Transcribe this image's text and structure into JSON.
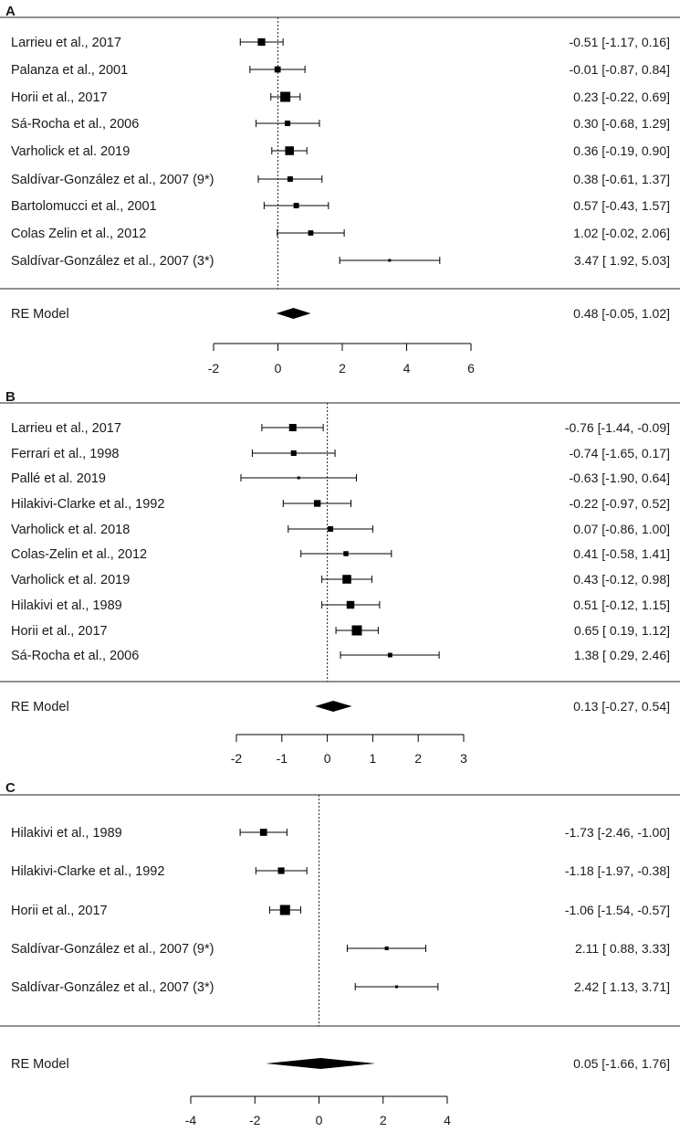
{
  "figure_title": "",
  "chart_data": [
    {
      "type": "forest",
      "panel": "A",
      "xlim": [
        -2,
        6
      ],
      "x_ticks": [
        -2,
        0,
        2,
        4,
        6
      ],
      "reference_line": 0,
      "studies": [
        {
          "label": "Larrieu et al., 2017",
          "estimate": -0.51,
          "lower": -1.17,
          "upper": 0.16,
          "ci_text": "-0.51 [-1.17, 0.16]"
        },
        {
          "label": "Palanza et al., 2001",
          "estimate": -0.01,
          "lower": -0.87,
          "upper": 0.84,
          "ci_text": "-0.01 [-0.87, 0.84]"
        },
        {
          "label": "Horii et al., 2017",
          "estimate": 0.23,
          "lower": -0.22,
          "upper": 0.69,
          "ci_text": "0.23 [-0.22, 0.69]"
        },
        {
          "label": "Sá-Rocha et al., 2006",
          "estimate": 0.3,
          "lower": -0.68,
          "upper": 1.29,
          "ci_text": "0.30 [-0.68, 1.29]"
        },
        {
          "label": "Varholick et al. 2019",
          "estimate": 0.36,
          "lower": -0.19,
          "upper": 0.9,
          "ci_text": "0.36 [-0.19, 0.90]"
        },
        {
          "label": "Saldívar-González et al., 2007 (9*)",
          "estimate": 0.38,
          "lower": -0.61,
          "upper": 1.37,
          "ci_text": "0.38 [-0.61, 1.37]"
        },
        {
          "label": "Bartolomucci et al., 2001",
          "estimate": 0.57,
          "lower": -0.43,
          "upper": 1.57,
          "ci_text": "0.57 [-0.43, 1.57]"
        },
        {
          "label": "Colas Zelin et al., 2012",
          "estimate": 1.02,
          "lower": -0.02,
          "upper": 2.06,
          "ci_text": "1.02 [-0.02, 2.06]"
        },
        {
          "label": "Saldívar-González et al., 2007 (3*)",
          "estimate": 3.47,
          "lower": 1.92,
          "upper": 5.03,
          "ci_text": "3.47 [ 1.92, 5.03]"
        }
      ],
      "pooled": {
        "label": "RE Model",
        "estimate": 0.48,
        "lower": -0.05,
        "upper": 1.02,
        "ci_text": "0.48 [-0.05, 1.02]"
      }
    },
    {
      "type": "forest",
      "panel": "B",
      "xlim": [
        -2,
        3
      ],
      "x_ticks": [
        -2,
        -1,
        0,
        1,
        2,
        3
      ],
      "reference_line": 0,
      "studies": [
        {
          "label": "Larrieu et al., 2017",
          "estimate": -0.76,
          "lower": -1.44,
          "upper": -0.09,
          "ci_text": "-0.76 [-1.44, -0.09]"
        },
        {
          "label": "Ferrari et al., 1998",
          "estimate": -0.74,
          "lower": -1.65,
          "upper": 0.17,
          "ci_text": "-0.74 [-1.65, 0.17]"
        },
        {
          "label": "Pallé et al. 2019",
          "estimate": -0.63,
          "lower": -1.9,
          "upper": 0.64,
          "ci_text": "-0.63 [-1.90, 0.64]"
        },
        {
          "label": "Hilakivi-Clarke et al., 1992",
          "estimate": -0.22,
          "lower": -0.97,
          "upper": 0.52,
          "ci_text": "-0.22 [-0.97, 0.52]"
        },
        {
          "label": "Varholick et al. 2018",
          "estimate": 0.07,
          "lower": -0.86,
          "upper": 1.0,
          "ci_text": "0.07 [-0.86, 1.00]"
        },
        {
          "label": "Colas-Zelin et al., 2012",
          "estimate": 0.41,
          "lower": -0.58,
          "upper": 1.41,
          "ci_text": "0.41 [-0.58, 1.41]"
        },
        {
          "label": "Varholick et al. 2019",
          "estimate": 0.43,
          "lower": -0.12,
          "upper": 0.98,
          "ci_text": "0.43 [-0.12, 0.98]"
        },
        {
          "label": "Hilakivi et al., 1989",
          "estimate": 0.51,
          "lower": -0.12,
          "upper": 1.15,
          "ci_text": "0.51 [-0.12, 1.15]"
        },
        {
          "label": "Horii et al., 2017",
          "estimate": 0.65,
          "lower": 0.19,
          "upper": 1.12,
          "ci_text": "0.65 [ 0.19, 1.12]"
        },
        {
          "label": "Sá-Rocha et al., 2006",
          "estimate": 1.38,
          "lower": 0.29,
          "upper": 2.46,
          "ci_text": "1.38 [ 0.29, 2.46]"
        }
      ],
      "pooled": {
        "label": "RE Model",
        "estimate": 0.13,
        "lower": -0.27,
        "upper": 0.54,
        "ci_text": "0.13 [-0.27, 0.54]"
      }
    },
    {
      "type": "forest",
      "panel": "C",
      "xlim": [
        -4,
        4
      ],
      "x_ticks": [
        -4,
        -2,
        0,
        2,
        4
      ],
      "reference_line": 0,
      "studies": [
        {
          "label": "Hilakivi et al., 1989",
          "estimate": -1.73,
          "lower": -2.46,
          "upper": -1.0,
          "ci_text": "-1.73 [-2.46, -1.00]"
        },
        {
          "label": "Hilakivi-Clarke et al., 1992",
          "estimate": -1.18,
          "lower": -1.97,
          "upper": -0.38,
          "ci_text": "-1.18 [-1.97, -0.38]"
        },
        {
          "label": "Horii et al., 2017",
          "estimate": -1.06,
          "lower": -1.54,
          "upper": -0.57,
          "ci_text": "-1.06 [-1.54, -0.57]"
        },
        {
          "label": "Saldívar-González et al., 2007 (9*)",
          "estimate": 2.11,
          "lower": 0.88,
          "upper": 3.33,
          "ci_text": "2.11 [ 0.88, 3.33]"
        },
        {
          "label": "Saldívar-González et al., 2007 (3*)",
          "estimate": 2.42,
          "lower": 1.13,
          "upper": 3.71,
          "ci_text": "2.42 [ 1.13, 3.71]"
        }
      ],
      "pooled": {
        "label": "RE Model",
        "estimate": 0.05,
        "lower": -1.66,
        "upper": 1.76,
        "ci_text": "0.05 [-1.66, 1.76]"
      }
    }
  ]
}
